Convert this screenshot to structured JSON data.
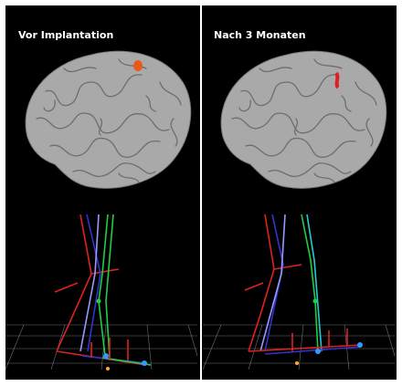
{
  "panels": [
    {
      "label": "Vor Implantation"
    },
    {
      "label": "Nach 3 Monaten"
    }
  ]
}
